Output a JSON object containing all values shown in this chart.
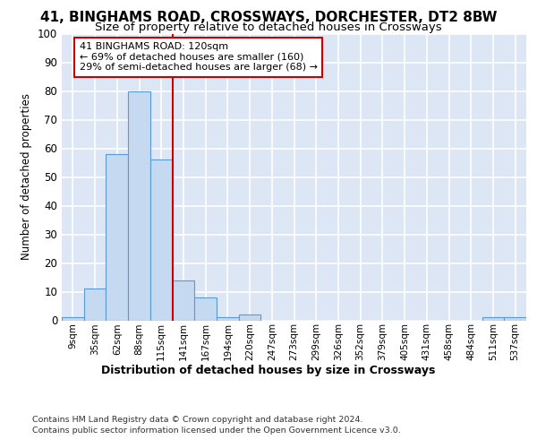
{
  "title1": "41, BINGHAMS ROAD, CROSSWAYS, DORCHESTER, DT2 8BW",
  "title2": "Size of property relative to detached houses in Crossways",
  "xlabel": "Distribution of detached houses by size in Crossways",
  "ylabel": "Number of detached properties",
  "bar_labels": [
    "9sqm",
    "35sqm",
    "62sqm",
    "88sqm",
    "115sqm",
    "141sqm",
    "167sqm",
    "194sqm",
    "220sqm",
    "247sqm",
    "273sqm",
    "299sqm",
    "326sqm",
    "352sqm",
    "379sqm",
    "405sqm",
    "431sqm",
    "458sqm",
    "484sqm",
    "511sqm",
    "537sqm"
  ],
  "bar_values": [
    1,
    11,
    58,
    80,
    56,
    14,
    8,
    1,
    2,
    0,
    0,
    0,
    0,
    0,
    0,
    0,
    0,
    0,
    0,
    1,
    1
  ],
  "bar_color": "#c5d9f0",
  "bar_edge_color": "#5b9bd5",
  "annotation_text": "41 BINGHAMS ROAD: 120sqm\n← 69% of detached houses are smaller (160)\n29% of semi-detached houses are larger (68) →",
  "annotation_box_color": "#ffffff",
  "annotation_box_edge": "#cc0000",
  "vline_color": "#cc0000",
  "ylim": [
    0,
    100
  ],
  "yticks": [
    0,
    10,
    20,
    30,
    40,
    50,
    60,
    70,
    80,
    90,
    100
  ],
  "footer1": "Contains HM Land Registry data © Crown copyright and database right 2024.",
  "footer2": "Contains public sector information licensed under the Open Government Licence v3.0.",
  "bg_color": "#dce6f5",
  "grid_color": "#ffffff",
  "title1_fontsize": 11,
  "title2_fontsize": 9.5,
  "vline_x_index": 4.5
}
